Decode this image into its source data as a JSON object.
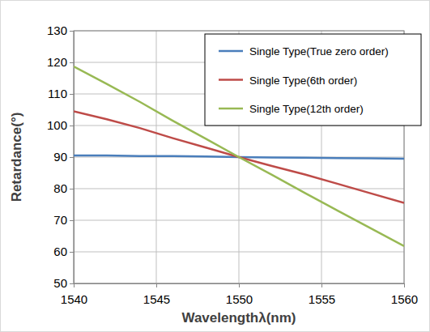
{
  "chart_data": {
    "type": "line",
    "x_label": "Wavelengthλ(nm)",
    "y_label": "Retardance(°)",
    "x": [
      1540,
      1542,
      1544,
      1546,
      1548,
      1550,
      1552,
      1554,
      1556,
      1558,
      1560
    ],
    "series": [
      {
        "name": "Single Type(True zero order)",
        "color": "#4a7ebb",
        "values": [
          90.5,
          90.5,
          90.3,
          90.3,
          90.2,
          90.0,
          89.9,
          89.8,
          89.7,
          89.6,
          89.5
        ]
      },
      {
        "name": "Single Type(6th order)",
        "color": "#be4b48",
        "values": [
          104.5,
          102.0,
          99.2,
          96.0,
          93.0,
          90.0,
          87.2,
          84.5,
          81.5,
          78.5,
          75.5
        ]
      },
      {
        "name": "Single Type(12th order)",
        "color": "#98b954",
        "values": [
          118.7,
          113.2,
          107.5,
          101.5,
          95.8,
          90.0,
          84.4,
          78.6,
          73.0,
          67.4,
          61.8
        ]
      }
    ],
    "xlim": [
      1540,
      1560
    ],
    "xticks": [
      1540,
      1545,
      1550,
      1555,
      1560
    ],
    "ylim": [
      50,
      130
    ],
    "yticks": [
      50,
      60,
      70,
      80,
      90,
      100,
      110,
      120,
      130
    ],
    "grid": true,
    "legend": "upper right"
  }
}
